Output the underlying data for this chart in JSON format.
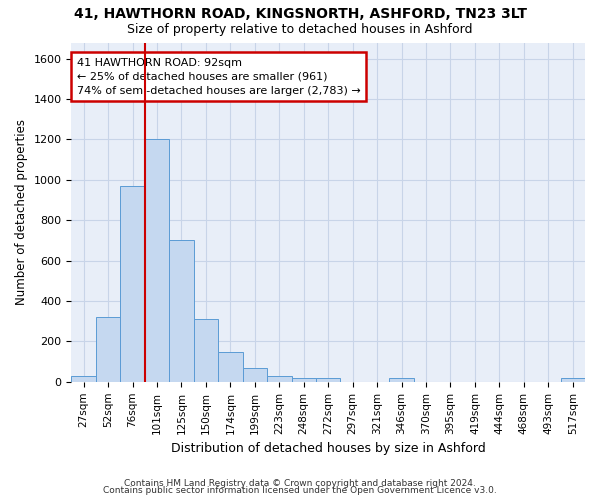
{
  "title1": "41, HAWTHORN ROAD, KINGSNORTH, ASHFORD, TN23 3LT",
  "title2": "Size of property relative to detached houses in Ashford",
  "xlabel": "Distribution of detached houses by size in Ashford",
  "ylabel": "Number of detached properties",
  "categories": [
    "27sqm",
    "52sqm",
    "76sqm",
    "101sqm",
    "125sqm",
    "150sqm",
    "174sqm",
    "199sqm",
    "223sqm",
    "248sqm",
    "272sqm",
    "297sqm",
    "321sqm",
    "346sqm",
    "370sqm",
    "395sqm",
    "419sqm",
    "444sqm",
    "468sqm",
    "493sqm",
    "517sqm"
  ],
  "values": [
    30,
    320,
    970,
    1200,
    700,
    310,
    150,
    70,
    30,
    20,
    20,
    0,
    0,
    20,
    0,
    0,
    0,
    0,
    0,
    0,
    20
  ],
  "bar_color": "#c5d8f0",
  "bar_edge_color": "#5b9bd5",
  "grid_color": "#c8d4e8",
  "background_color": "#e8eef8",
  "vline_color": "#cc0000",
  "annotation_text": "41 HAWTHORN ROAD: 92sqm\n← 25% of detached houses are smaller (961)\n74% of semi-detached houses are larger (2,783) →",
  "annotation_box_color": "white",
  "annotation_box_edge": "#cc0000",
  "ylim": [
    0,
    1680
  ],
  "yticks": [
    0,
    200,
    400,
    600,
    800,
    1000,
    1200,
    1400,
    1600
  ],
  "footer1": "Contains HM Land Registry data © Crown copyright and database right 2024.",
  "footer2": "Contains public sector information licensed under the Open Government Licence v3.0."
}
